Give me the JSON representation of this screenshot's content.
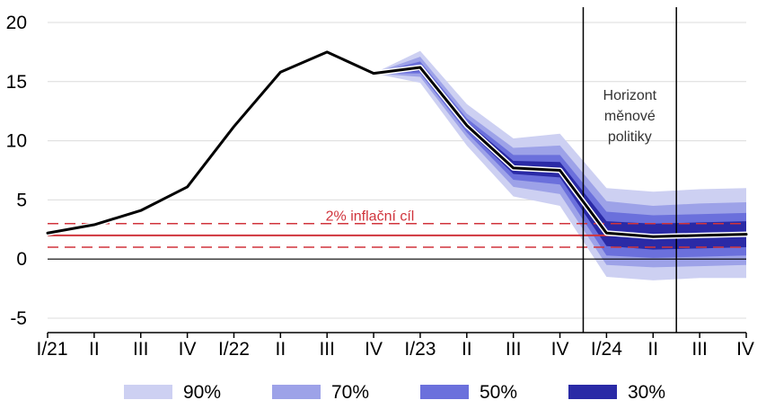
{
  "chart_data": {
    "type": "line",
    "categories": [
      "I/21",
      "II",
      "III",
      "IV",
      "I/22",
      "II",
      "III",
      "IV",
      "I/23",
      "II",
      "III",
      "IV",
      "I/24",
      "II",
      "III",
      "IV"
    ],
    "ylim": [
      -5,
      20
    ],
    "yticks": [
      "-5",
      "0",
      "5",
      "10",
      "15",
      "20"
    ],
    "grid": true,
    "legend_placement": "bottom",
    "series": [
      {
        "values": [
          2.2,
          2.9,
          4.1,
          6.1,
          11.2,
          15.8,
          17.5,
          15.7,
          16.2,
          11.3,
          7.7,
          7.5,
          2.2,
          1.9,
          2.0,
          2.1
        ]
      }
    ],
    "fan_start_index": 7,
    "fan_bands": [
      {
        "label": "90%",
        "color": "#cdd0f2",
        "lower": [
          15.7,
          14.9,
          9.6,
          5.3,
          4.5,
          -1.5,
          -1.8,
          -1.6,
          -1.6
        ],
        "upper": [
          15.7,
          17.6,
          13.1,
          10.2,
          10.6,
          6.0,
          5.7,
          5.9,
          6.0
        ]
      },
      {
        "label": "70%",
        "color": "#9da2e8",
        "lower": [
          15.7,
          15.4,
          10.3,
          6.1,
          5.5,
          -0.5,
          -0.7,
          -0.6,
          -0.5
        ],
        "upper": [
          15.7,
          17.1,
          12.3,
          9.4,
          9.6,
          4.9,
          4.5,
          4.7,
          4.8
        ]
      },
      {
        "label": "50%",
        "color": "#6b70dc",
        "lower": [
          15.7,
          15.7,
          10.7,
          6.7,
          6.3,
          0.3,
          0.1,
          0.2,
          0.3
        ],
        "upper": [
          15.7,
          16.7,
          11.9,
          8.8,
          8.8,
          4.0,
          3.7,
          3.8,
          3.9
        ]
      },
      {
        "label": "30%",
        "color": "#2a2aa6",
        "lower": [
          15.7,
          15.9,
          11.0,
          7.2,
          6.9,
          1.1,
          0.8,
          0.9,
          1.0
        ],
        "upper": [
          15.7,
          16.4,
          11.6,
          8.3,
          8.2,
          3.2,
          3.0,
          3.1,
          3.2
        ]
      }
    ],
    "target": {
      "label": "2% inflační cíl",
      "value": 2,
      "band": [
        1,
        3
      ],
      "color": "#d0343c"
    },
    "policy_horizon": {
      "label_lines": [
        "Horizont",
        "měnové",
        "politiky"
      ],
      "from_index": 11.5,
      "to_index": 13.5
    }
  }
}
